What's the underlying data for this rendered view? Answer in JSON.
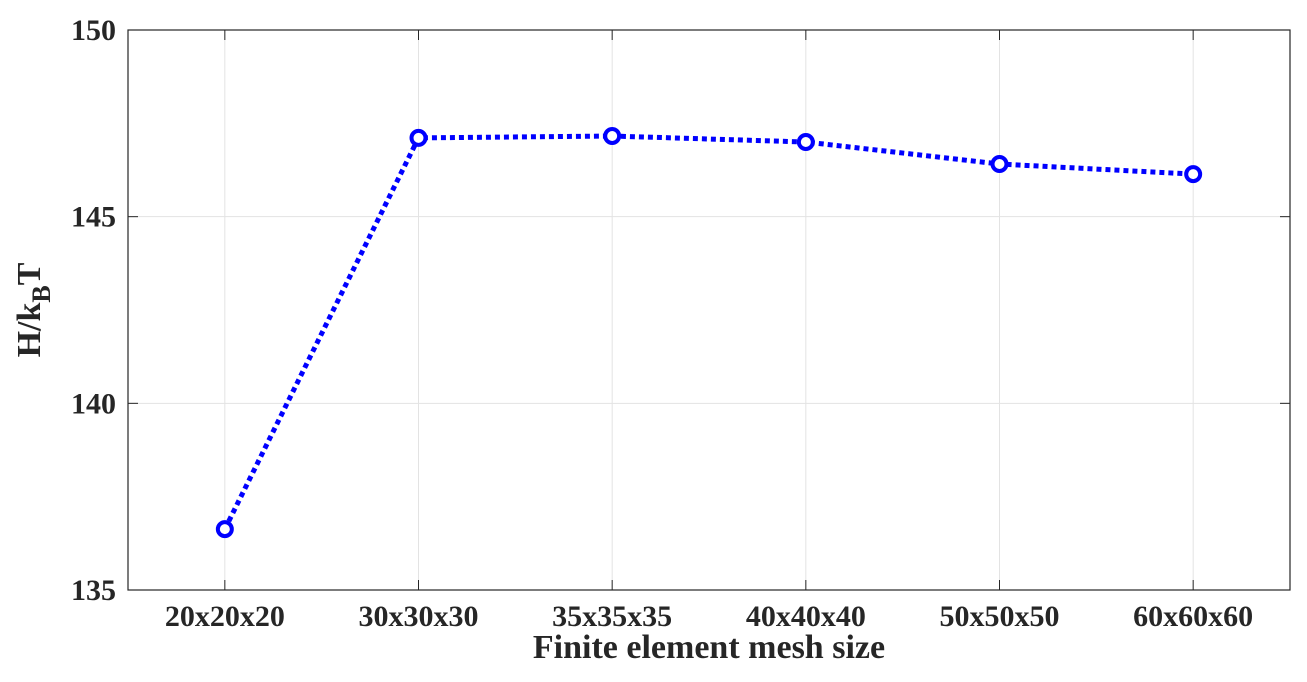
{
  "chart_data": {
    "type": "line",
    "xlabel": "Finite element mesh size",
    "ylabel": [
      "H/k",
      "B",
      "T"
    ],
    "categories": [
      "20x20x20",
      "30x30x30",
      "35x35x35",
      "40x40x40",
      "50x50x50",
      "60x60x60"
    ],
    "values": [
      136.63,
      147.11,
      147.16,
      147.0,
      146.41,
      146.14
    ],
    "color": "#0000ff",
    "ylim": [
      135,
      150
    ],
    "yticks": [
      135,
      140,
      145,
      150
    ],
    "grid": true
  }
}
